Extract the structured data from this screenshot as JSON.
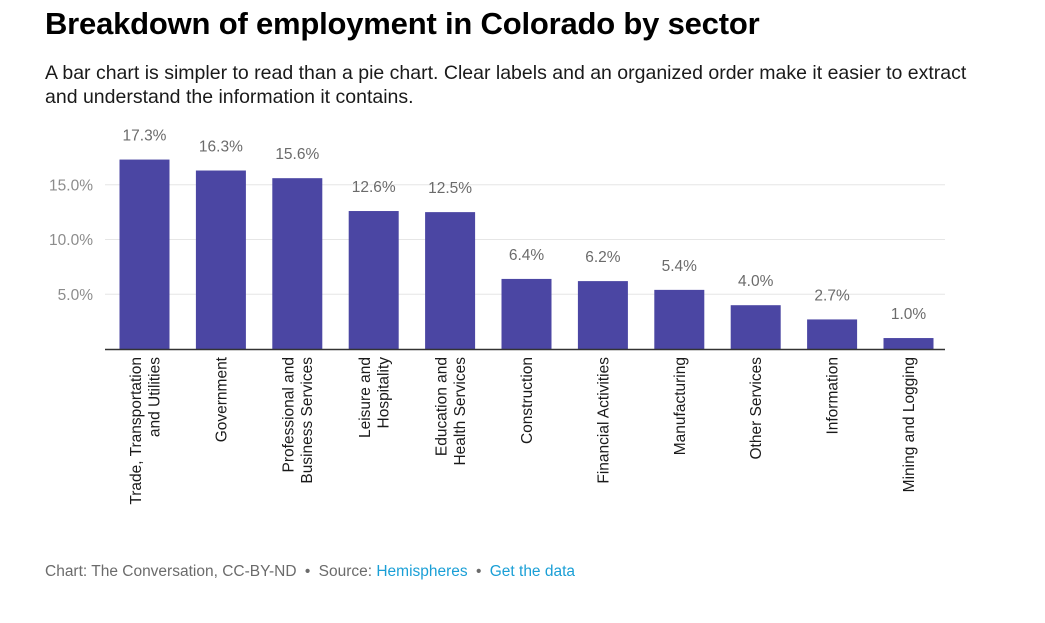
{
  "title": "Breakdown of employment in Colorado by sector",
  "subtitle": "A bar chart is simpler to read than a pie chart. Clear labels and an organized order make it easier to extract and understand the information it contains.",
  "chart_data": {
    "type": "bar",
    "title": "Breakdown of employment in Colorado by sector",
    "xlabel": "",
    "ylabel": "",
    "ylim": [
      0,
      17.3
    ],
    "yticks": [
      5,
      10,
      15
    ],
    "ytick_labels": [
      "5.0%",
      "10.0%",
      "15.0%"
    ],
    "grid": true,
    "bar_color": "#4b46a3",
    "categories": [
      [
        "Trade, Transportation",
        "and Utilities"
      ],
      [
        "Government"
      ],
      [
        "Professional and",
        "Business Services"
      ],
      [
        "Leisure and",
        "Hospitality"
      ],
      [
        "Education and",
        "Health Services"
      ],
      [
        "Construction"
      ],
      [
        "Financial Activities"
      ],
      [
        "Manufacturing"
      ],
      [
        "Other Services"
      ],
      [
        "Information"
      ],
      [
        "Mining and Logging"
      ]
    ],
    "values": [
      17.3,
      16.3,
      15.6,
      12.6,
      12.5,
      6.4,
      6.2,
      5.4,
      4.0,
      2.7,
      1.0
    ],
    "value_labels": [
      "17.3%",
      "16.3%",
      "15.6%",
      "12.6%",
      "12.5%",
      "6.4%",
      "6.2%",
      "5.4%",
      "4.0%",
      "2.7%",
      "1.0%"
    ]
  },
  "footer": {
    "credit": "Chart: The Conversation, CC-BY-ND",
    "separator": "•",
    "source_prefix": "Source:",
    "source_link": "Hemispheres",
    "data_link": "Get the data"
  }
}
